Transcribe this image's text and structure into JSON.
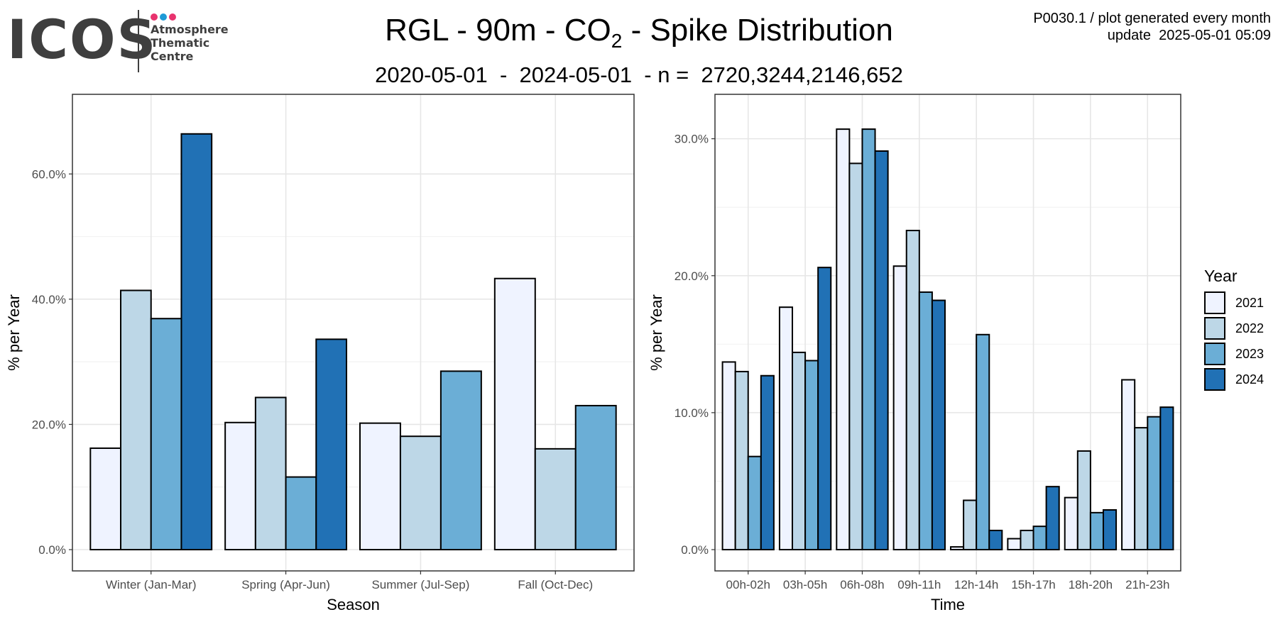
{
  "logo": {
    "wordmark": "ICOS",
    "lines": [
      "Atmosphere",
      "Thematic",
      "Centre"
    ],
    "dot_colors": [
      "#e8336e",
      "#1f9ad6",
      "#e8336e"
    ]
  },
  "header": {
    "title_prefix": "RGL - 90m - CO",
    "title_sub": "2",
    "title_suffix": " - Spike Distribution",
    "subtitle": "2020-05-01  -  2024-05-01  - n =  2720,3244,2146,652",
    "meta_line1": "P0030.1 / plot generated every month",
    "meta_line2": "update  2025-05-01 05:09"
  },
  "legend": {
    "title": "Year",
    "items": [
      {
        "label": "2021",
        "color": "#eff3ff"
      },
      {
        "label": "2022",
        "color": "#bdd7e7"
      },
      {
        "label": "2023",
        "color": "#6baed6"
      },
      {
        "label": "2024",
        "color": "#2171b5"
      }
    ]
  },
  "chart_data": [
    {
      "type": "bar",
      "xlabel": "Season",
      "ylabel": "% per Year",
      "ylim": [
        0,
        70
      ],
      "yticks": [
        "0.0%",
        "20.0%",
        "40.0%",
        "60.0%"
      ],
      "grid": true,
      "categories": [
        "Winter (Jan-Mar)",
        "Spring (Apr-Jun)",
        "Summer (Jul-Sep)",
        "Fall (Oct-Dec)"
      ],
      "series": [
        {
          "name": "2021",
          "values": [
            16.2,
            20.3,
            20.2,
            43.3
          ]
        },
        {
          "name": "2022",
          "values": [
            41.4,
            24.3,
            18.1,
            16.1
          ]
        },
        {
          "name": "2023",
          "values": [
            36.9,
            11.6,
            28.5,
            23.0
          ]
        },
        {
          "name": "2024",
          "values": [
            66.4,
            33.6,
            null,
            null
          ]
        }
      ]
    },
    {
      "type": "bar",
      "xlabel": "Time",
      "ylabel": "% per Year",
      "ylim": [
        0,
        32
      ],
      "yticks": [
        "0.0%",
        "10.0%",
        "20.0%",
        "30.0%"
      ],
      "grid": true,
      "legend_position": "right",
      "categories": [
        "00h-02h",
        "03h-05h",
        "06h-08h",
        "09h-11h",
        "12h-14h",
        "15h-17h",
        "18h-20h",
        "21h-23h"
      ],
      "series": [
        {
          "name": "2021",
          "values": [
            13.7,
            17.7,
            30.7,
            20.7,
            0.2,
            0.8,
            3.8,
            12.4
          ]
        },
        {
          "name": "2022",
          "values": [
            13.0,
            14.4,
            28.2,
            23.3,
            3.6,
            1.4,
            7.2,
            8.9
          ]
        },
        {
          "name": "2023",
          "values": [
            6.8,
            13.8,
            30.7,
            18.8,
            15.7,
            1.7,
            2.7,
            9.7
          ]
        },
        {
          "name": "2024",
          "values": [
            12.7,
            20.6,
            29.1,
            18.2,
            1.4,
            4.6,
            2.9,
            10.4
          ]
        }
      ]
    }
  ]
}
